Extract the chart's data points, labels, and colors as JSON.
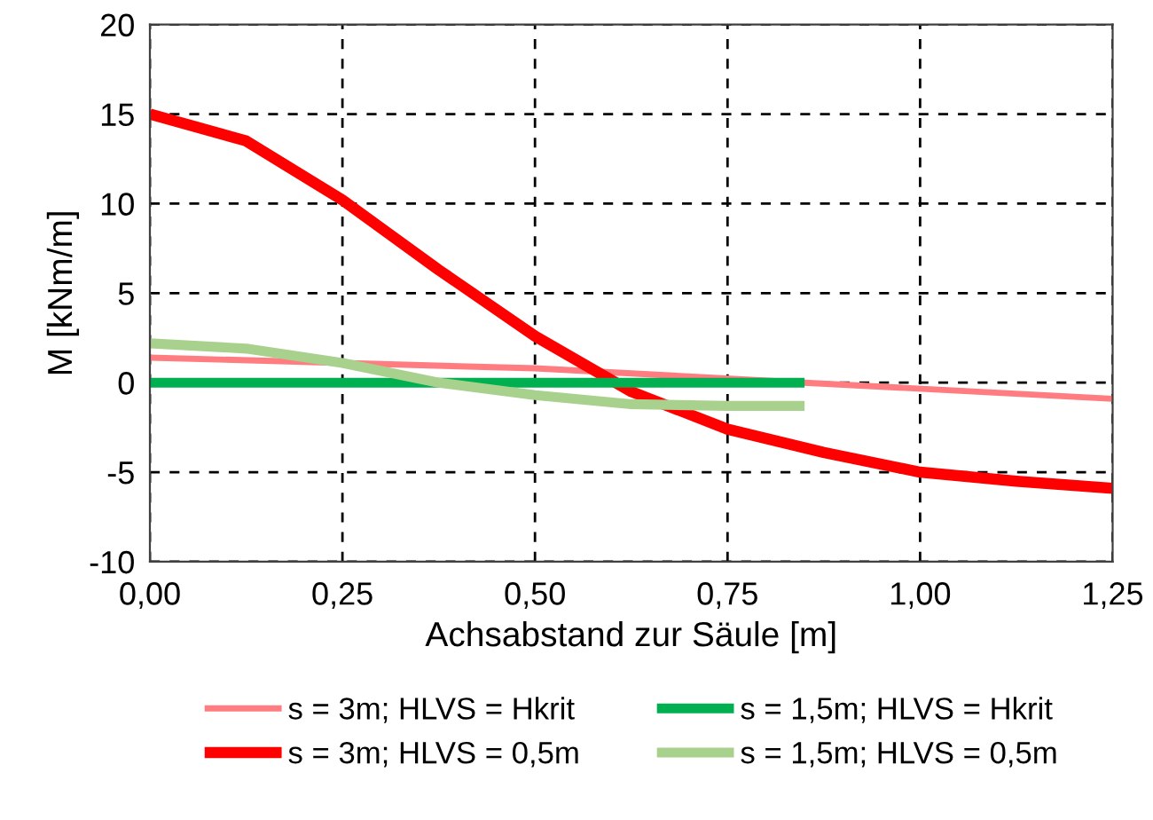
{
  "chart_data": {
    "type": "line",
    "xlabel": "Achsabstand zur Säule [m]",
    "ylabel": "M [kNm/m]",
    "xlim": [
      0,
      1.25
    ],
    "ylim": [
      -10,
      20
    ],
    "xticks": [
      {
        "value": 0,
        "label": "0,00"
      },
      {
        "value": 0.25,
        "label": "0,25"
      },
      {
        "value": 0.5,
        "label": "0,50"
      },
      {
        "value": 0.75,
        "label": "0,75"
      },
      {
        "value": 1.0,
        "label": "1,00"
      },
      {
        "value": 1.25,
        "label": "1,25"
      }
    ],
    "yticks": [
      -10,
      -5,
      0,
      5,
      10,
      15,
      20
    ],
    "grid": true,
    "legend": "bottom",
    "line_style": "solid",
    "marker": "none",
    "series": [
      {
        "name": "s = 3m; HLVS = Hkrit",
        "color": "#ff7c80",
        "x": [
          0,
          0.5,
          0.85,
          1.25
        ],
        "values": [
          1.4,
          0.8,
          0,
          -0.9
        ]
      },
      {
        "name": "s = 3m; HLVS = 0,5m",
        "color": "#ff0000",
        "x": [
          0,
          0.125,
          0.25,
          0.375,
          0.5,
          0.625,
          0.75,
          0.875,
          1.0,
          1.125,
          1.25
        ],
        "values": [
          15,
          13.5,
          10.2,
          6.3,
          2.6,
          -0.5,
          -2.6,
          -3.9,
          -5,
          -5.5,
          -5.9
        ]
      },
      {
        "name": "s = 1,5m; HLVS = Hkrit",
        "color": "#00b050",
        "x": [
          0,
          0.85
        ],
        "values": [
          0,
          0
        ]
      },
      {
        "name": "s = 1,5m; HLVS = 0,5m",
        "color": "#a9d18e",
        "x": [
          0,
          0.125,
          0.25,
          0.375,
          0.5,
          0.625,
          0.75,
          0.85
        ],
        "values": [
          2.2,
          1.9,
          1.1,
          0,
          -0.7,
          -1.2,
          -1.3,
          -1.3
        ]
      }
    ]
  }
}
